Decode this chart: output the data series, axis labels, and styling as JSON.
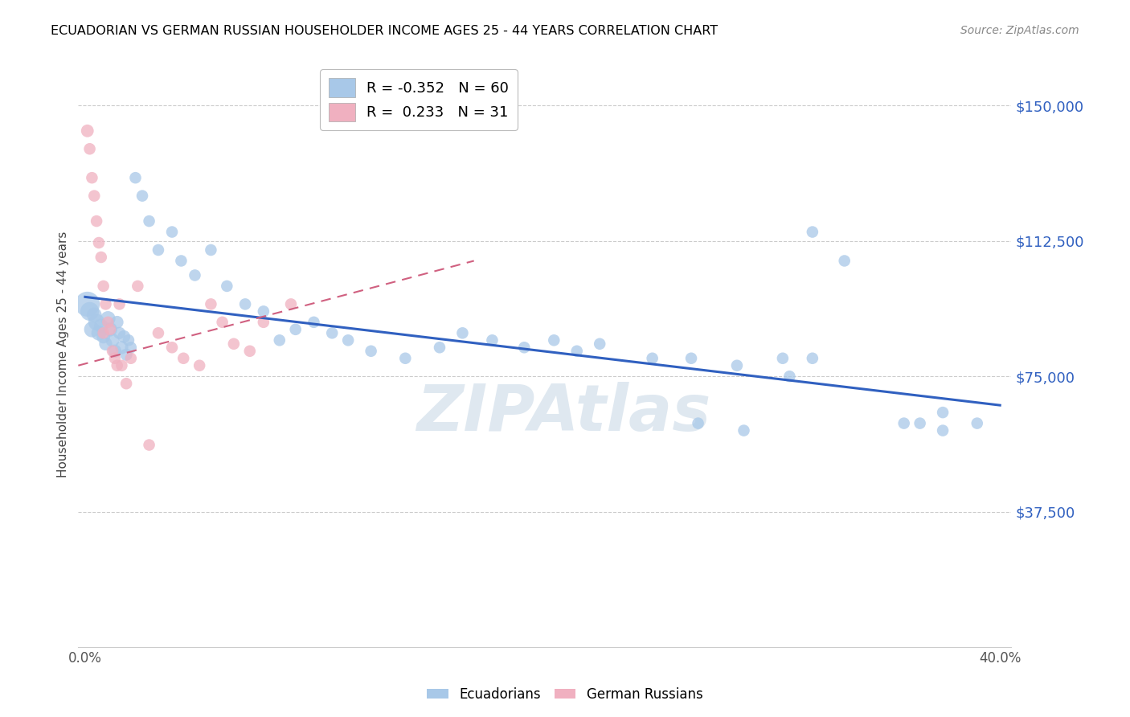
{
  "title": "ECUADORIAN VS GERMAN RUSSIAN HOUSEHOLDER INCOME AGES 25 - 44 YEARS CORRELATION CHART",
  "source": "Source: ZipAtlas.com",
  "ylabel": "Householder Income Ages 25 - 44 years",
  "ytick_labels": [
    "$37,500",
    "$75,000",
    "$112,500",
    "$150,000"
  ],
  "ytick_vals": [
    37500,
    75000,
    112500,
    150000
  ],
  "ylim": [
    0,
    162000
  ],
  "xlim": [
    -0.003,
    0.405
  ],
  "blue_color": "#a8c8e8",
  "pink_color": "#f0b0c0",
  "blue_line_color": "#3060c0",
  "pink_line_color": "#d06080",
  "legend_blue_R": "-0.352",
  "legend_blue_N": "60",
  "legend_pink_R": "0.233",
  "legend_pink_N": "31",
  "watermark": "ZIPAtlas",
  "blue_trend_x0": 0.0,
  "blue_trend_y0": 97000,
  "blue_trend_x1": 0.4,
  "blue_trend_y1": 67000,
  "pink_trend_x0": -0.003,
  "pink_trend_y0": 78000,
  "pink_trend_x1": 0.17,
  "pink_trend_y1": 107000,
  "ecu_x": [
    0.001,
    0.002,
    0.003,
    0.004,
    0.005,
    0.006,
    0.007,
    0.008,
    0.009,
    0.01,
    0.011,
    0.012,
    0.013,
    0.014,
    0.015,
    0.016,
    0.017,
    0.018,
    0.019,
    0.02,
    0.022,
    0.025,
    0.028,
    0.032,
    0.038,
    0.042,
    0.048,
    0.055,
    0.062,
    0.07,
    0.078,
    0.085,
    0.092,
    0.1,
    0.108,
    0.115,
    0.125,
    0.14,
    0.155,
    0.165,
    0.178,
    0.192,
    0.205,
    0.215,
    0.225,
    0.248,
    0.265,
    0.285,
    0.305,
    0.318,
    0.268,
    0.288,
    0.318,
    0.332,
    0.358,
    0.375,
    0.39,
    0.308,
    0.365,
    0.375
  ],
  "ecu_y": [
    95000,
    93000,
    88000,
    92000,
    90000,
    87000,
    89000,
    86000,
    84000,
    91000,
    88000,
    85000,
    82000,
    90000,
    87000,
    83000,
    86000,
    81000,
    85000,
    83000,
    130000,
    125000,
    118000,
    110000,
    115000,
    107000,
    103000,
    110000,
    100000,
    95000,
    93000,
    85000,
    88000,
    90000,
    87000,
    85000,
    82000,
    80000,
    83000,
    87000,
    85000,
    83000,
    85000,
    82000,
    84000,
    80000,
    80000,
    78000,
    80000,
    80000,
    62000,
    60000,
    115000,
    107000,
    62000,
    60000,
    62000,
    75000,
    62000,
    65000
  ],
  "ecu_size": [
    500,
    280,
    200,
    180,
    220,
    180,
    160,
    150,
    140,
    180,
    160,
    150,
    140,
    130,
    120,
    140,
    130,
    120,
    110,
    110,
    110,
    110,
    110,
    110,
    110,
    110,
    110,
    110,
    110,
    110,
    110,
    110,
    110,
    110,
    110,
    110,
    110,
    110,
    110,
    110,
    110,
    110,
    110,
    110,
    110,
    110,
    110,
    110,
    110,
    110,
    110,
    110,
    110,
    110,
    110,
    110,
    110,
    110,
    110,
    110
  ],
  "ger_x": [
    0.001,
    0.002,
    0.003,
    0.004,
    0.005,
    0.006,
    0.007,
    0.008,
    0.009,
    0.01,
    0.011,
    0.012,
    0.013,
    0.014,
    0.015,
    0.016,
    0.018,
    0.02,
    0.023,
    0.028,
    0.032,
    0.038,
    0.043,
    0.05,
    0.055,
    0.06,
    0.065,
    0.072,
    0.078,
    0.09,
    0.008
  ],
  "ger_y": [
    143000,
    138000,
    130000,
    125000,
    118000,
    112000,
    108000,
    100000,
    95000,
    90000,
    88000,
    82000,
    80000,
    78000,
    95000,
    78000,
    73000,
    80000,
    100000,
    56000,
    87000,
    83000,
    80000,
    78000,
    95000,
    90000,
    84000,
    82000,
    90000,
    95000,
    87000
  ],
  "ger_size": [
    130,
    110,
    110,
    110,
    110,
    110,
    110,
    110,
    110,
    110,
    110,
    110,
    110,
    110,
    110,
    110,
    110,
    110,
    110,
    110,
    110,
    110,
    110,
    110,
    110,
    110,
    110,
    110,
    110,
    110,
    110
  ]
}
